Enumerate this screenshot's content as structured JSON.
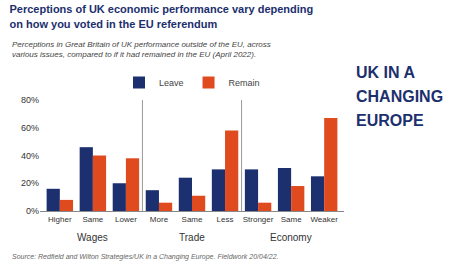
{
  "chart_data": {
    "type": "bar",
    "title": "Perceptions of UK economic performance vary depending\non how you voted in the EU referendum",
    "subtitle": "Perceptions in Great Britain of UK performance outside of the EU, across\nvarious issues, compared to if it had remained in the EU (April 2022).",
    "source": "Source: Redfield and Wilton Strategies/UK in a Changing Europe. Fieldwork 20/04/22.",
    "logo": [
      "UK IN A",
      "CHANGING",
      "EUROPE"
    ],
    "categories": [
      "Higher",
      "Same",
      "Lower",
      "More",
      "Same",
      "Less",
      "Stronger",
      "Same",
      "Weaker"
    ],
    "groups": [
      "Wages",
      "Trade",
      "Economy"
    ],
    "series": [
      {
        "name": "Leave",
        "color": "#1c2f6e",
        "values": [
          16,
          46,
          20,
          15,
          24,
          30,
          30,
          31,
          25
        ]
      },
      {
        "name": "Remain",
        "color": "#e04a1f",
        "values": [
          8,
          40,
          38,
          6,
          11,
          58,
          6,
          18,
          67
        ]
      }
    ],
    "ylim": [
      0,
      80
    ],
    "yticks": [
      {
        "value": 0,
        "label": "0%"
      },
      {
        "value": 20,
        "label": "20%"
      },
      {
        "value": 40,
        "label": "40%"
      },
      {
        "value": 60,
        "label": "60%"
      },
      {
        "value": 80,
        "label": "80%"
      }
    ],
    "grid": false,
    "legend": "top"
  }
}
